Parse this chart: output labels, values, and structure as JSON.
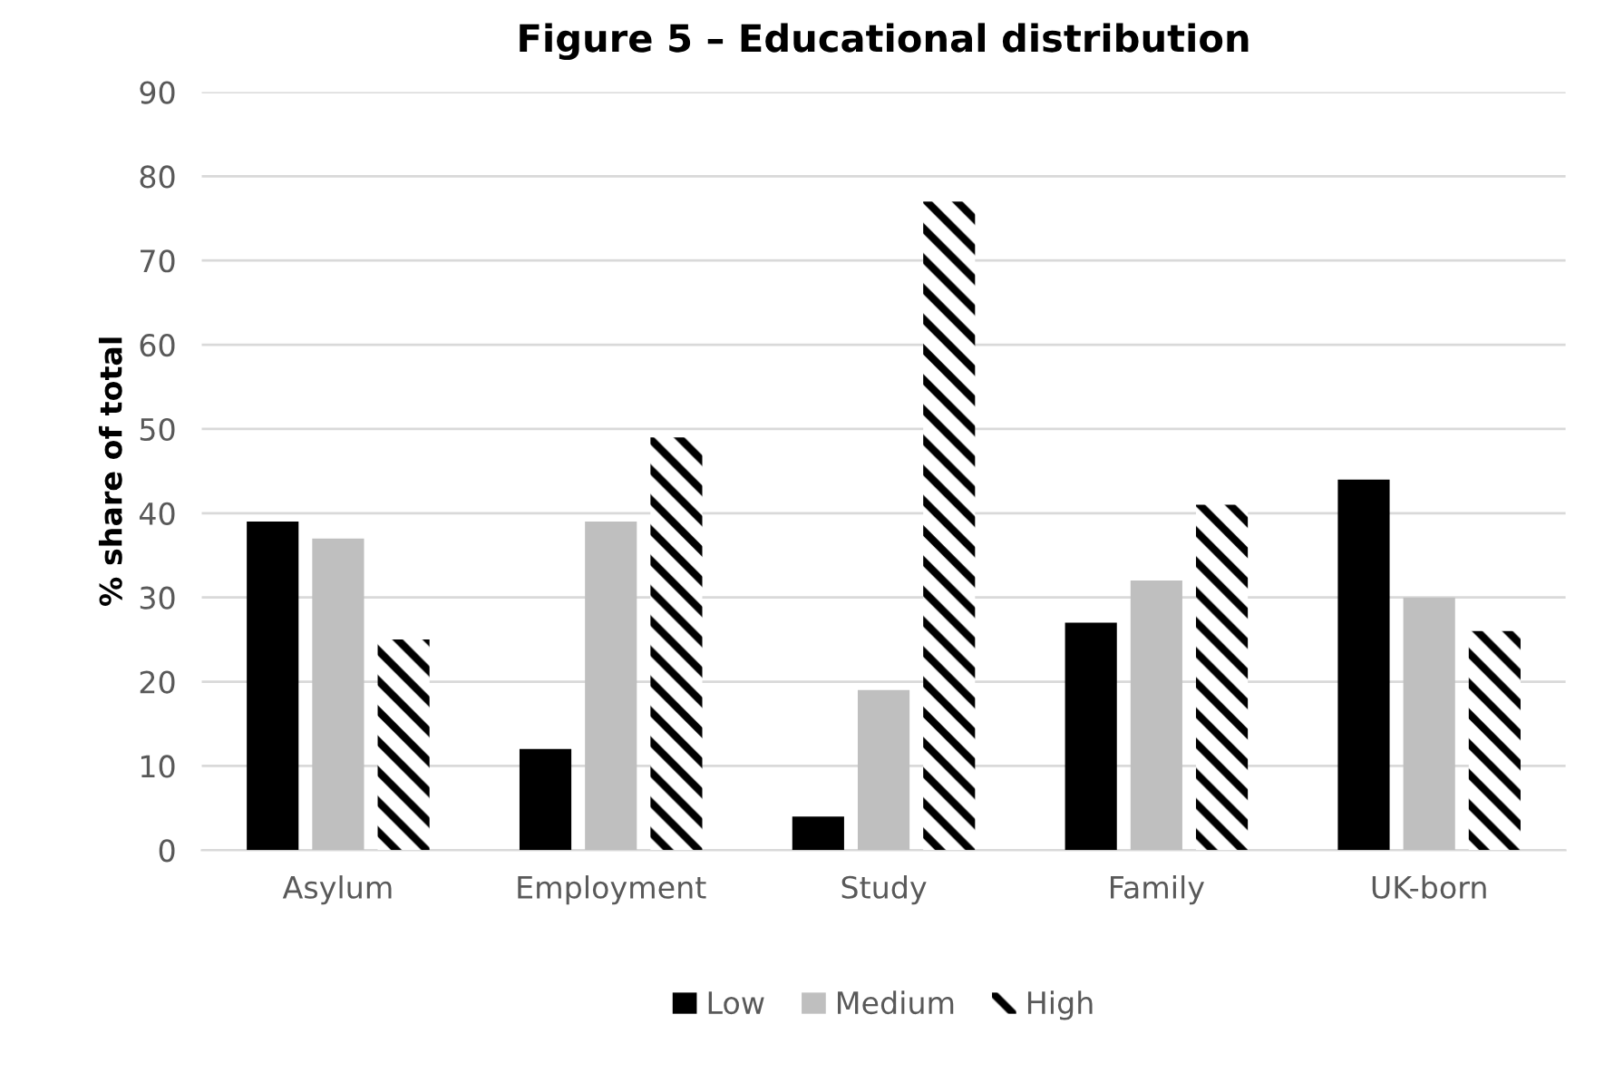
{
  "chart_data": {
    "type": "bar",
    "title": "Figure 5 – Educational distribution",
    "ylabel": "% share of total",
    "categories": [
      "Asylum",
      "Employment",
      "Study",
      "Family",
      "UK-born"
    ],
    "series": [
      {
        "name": "Low",
        "color": "#000000",
        "values": [
          39,
          12,
          4,
          27,
          44
        ]
      },
      {
        "name": "Medium",
        "color": "#bfbfbf",
        "values": [
          37,
          39,
          19,
          32,
          30
        ]
      },
      {
        "name": "High",
        "color": "#000000",
        "values": [
          25,
          49,
          77,
          41,
          26
        ]
      }
    ],
    "ylim": [
      0,
      90
    ],
    "yticks": [
      0,
      10,
      20,
      30,
      40,
      50,
      60,
      70,
      80,
      90
    ],
    "grid": "y",
    "legend": "bottom"
  }
}
